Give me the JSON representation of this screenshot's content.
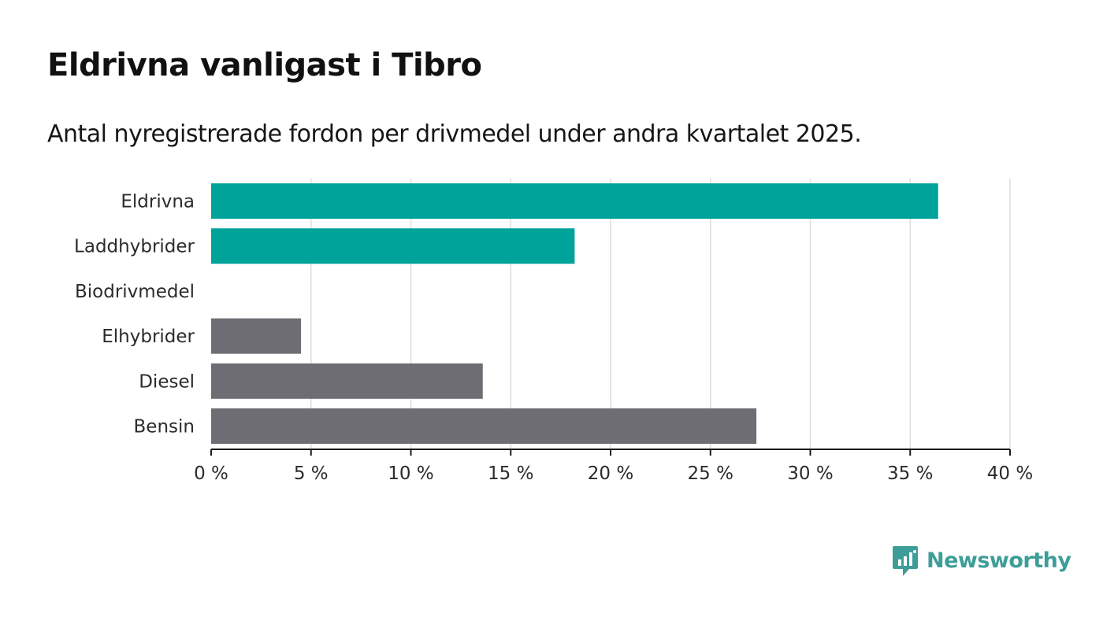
{
  "header": {
    "title": "Eldrivna vanligast i Tibro",
    "subtitle": "Antal nyregistrerade fordon per drivmedel under andra kvartalet 2025."
  },
  "brand": {
    "name": "Newsworthy",
    "icon": "chart-speech-bubble-icon",
    "color": "#3d9e98"
  },
  "chart_data": {
    "type": "bar",
    "orientation": "horizontal",
    "categories": [
      "Eldrivna",
      "Laddhybrider",
      "Biodrivmedel",
      "Elhybrider",
      "Diesel",
      "Bensin"
    ],
    "values": [
      36.4,
      18.2,
      0,
      4.5,
      13.6,
      27.3
    ],
    "bar_colors": [
      "#00a39a",
      "#00a39a",
      "#00a39a",
      "#6e6d74",
      "#6e6d74",
      "#6e6d74"
    ],
    "xlim": [
      0,
      40
    ],
    "xticks": [
      0,
      5,
      10,
      15,
      20,
      25,
      30,
      35,
      40
    ],
    "xtick_labels": [
      "0 %",
      "5 %",
      "10 %",
      "15 %",
      "20 %",
      "25 %",
      "30 %",
      "35 %",
      "40 %"
    ],
    "xlabel": "",
    "ylabel": "",
    "grid": "vertical",
    "legend": "none"
  }
}
